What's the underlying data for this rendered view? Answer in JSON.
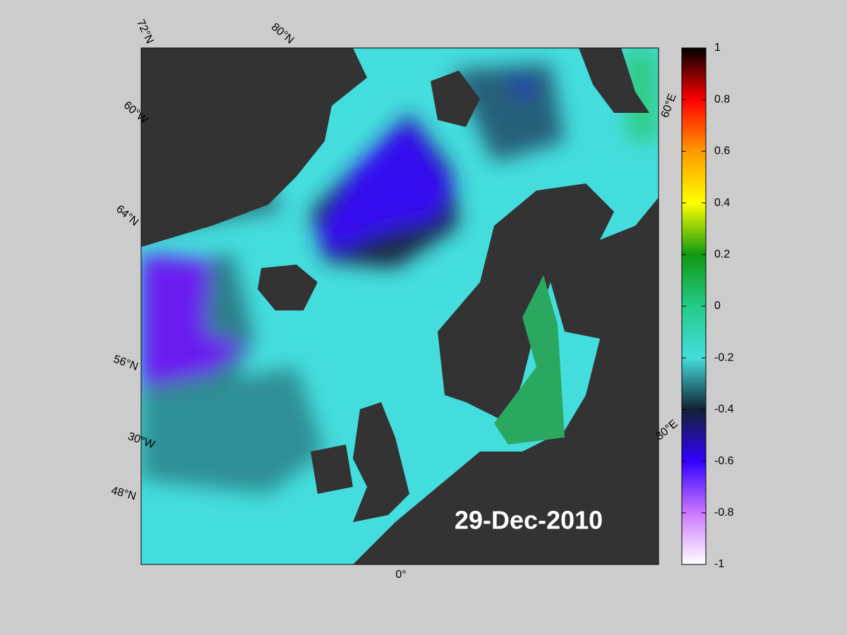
{
  "map": {
    "date": "29-Dec-2010",
    "grid_labels": [
      "72°N",
      "80°N",
      "60°W",
      "64°N",
      "56°N",
      "30°W",
      "48°N",
      "0°",
      "60°E",
      "30°E"
    ]
  },
  "colorbar": {
    "lim": [
      -1,
      1
    ],
    "ticks": [
      1,
      0.8,
      0.6,
      0.4,
      0.2,
      0,
      -0.2,
      -0.4,
      -0.6,
      -0.8,
      -1
    ],
    "colormap": [
      "#000000",
      "#ff0000",
      "#ff9900",
      "#ffff00",
      "#119911",
      "#22cc88",
      "#44dddd",
      "#112233",
      "#3300ff",
      "#cc77ff",
      "#ffffff"
    ]
  }
}
